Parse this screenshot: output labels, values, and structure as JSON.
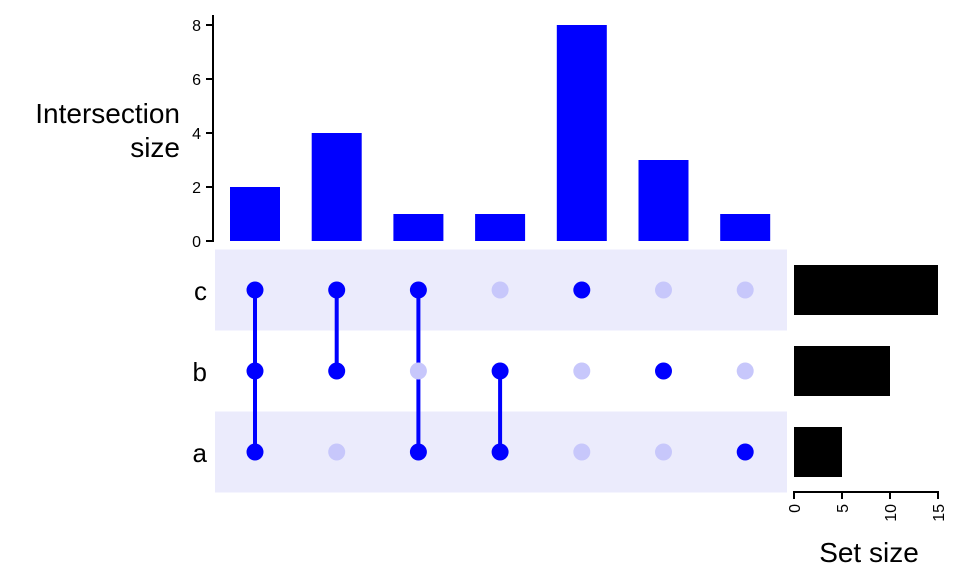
{
  "chart_data": {
    "type": "bar",
    "title": "",
    "intersection_plot": {
      "ylabel_line1": "Intersection",
      "ylabel_line2": "size",
      "ylim": [
        0,
        8
      ],
      "y_ticks": [
        0,
        2,
        4,
        6,
        8
      ],
      "bar_color": "#0000ff",
      "values": [
        2,
        4,
        1,
        1,
        8,
        3,
        1
      ]
    },
    "sets": [
      "c",
      "b",
      "a"
    ],
    "matrix": {
      "active_color": "#0000ff",
      "inactive_color": "#c7c7fb",
      "band_color": "#ebebfc",
      "membership": [
        [
          "c",
          "b",
          "a"
        ],
        [
          "c",
          "b"
        ],
        [
          "c",
          "a"
        ],
        [
          "b",
          "a"
        ],
        [
          "c"
        ],
        [
          "b"
        ],
        [
          "a"
        ]
      ]
    },
    "set_size_plot": {
      "xlabel": "Set size",
      "xlim": [
        0,
        15
      ],
      "x_ticks": [
        0,
        5,
        10,
        15
      ],
      "bar_color": "#000000",
      "values": {
        "c": 15,
        "b": 10,
        "a": 5
      }
    }
  }
}
